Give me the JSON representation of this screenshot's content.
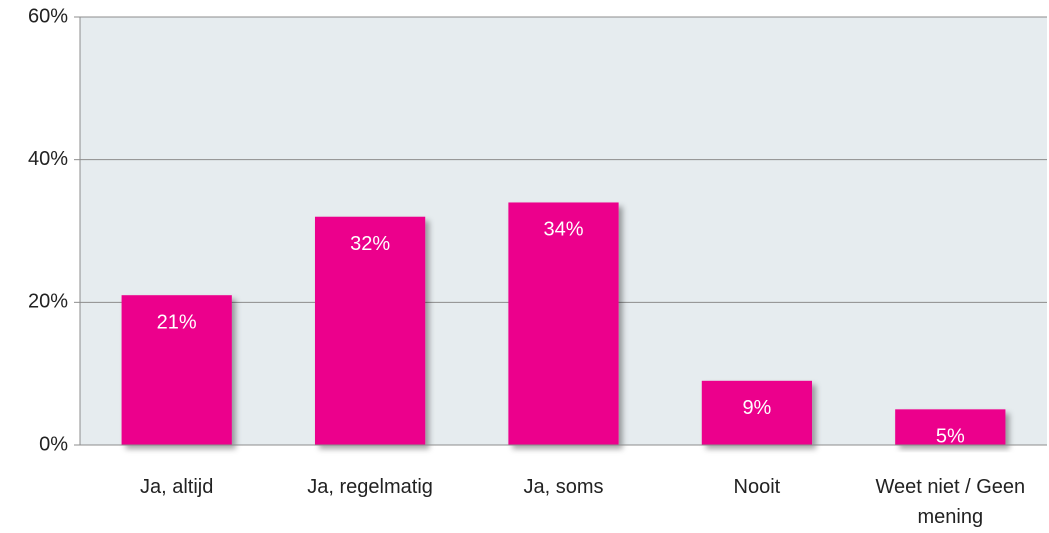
{
  "chart_data": {
    "type": "bar",
    "categories": [
      "Ja, altijd",
      "Ja, regelmatig",
      "Ja, soms",
      "Nooit",
      "Weet niet / Geen mening"
    ],
    "values": [
      21,
      32,
      34,
      9,
      5
    ],
    "value_labels": [
      "21%",
      "32%",
      "34%",
      "9%",
      "5%"
    ],
    "color": "#ec008c",
    "ylim": [
      0,
      60
    ],
    "yticks": [
      {
        "value": 0,
        "label": "0%"
      },
      {
        "value": 20,
        "label": "20%"
      },
      {
        "value": 40,
        "label": "40%"
      },
      {
        "value": 60,
        "label": "60%"
      }
    ],
    "grid": true
  }
}
